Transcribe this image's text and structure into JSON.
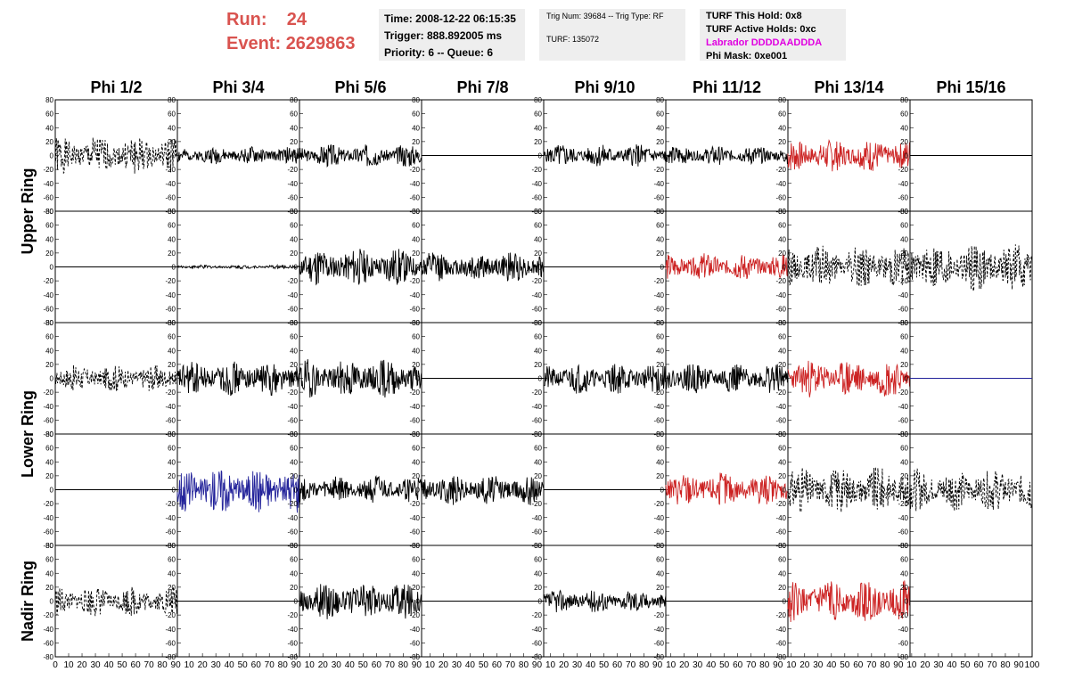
{
  "header": {
    "run_label": "Run:",
    "run_value": "24",
    "event_label": "Event:",
    "event_value": "2629863"
  },
  "info": {
    "time": "Time: 2008-12-22 06:15:35",
    "trigger": "Trigger: 888.892005 ms",
    "priority": "Priority: 6 -- Queue: 6",
    "trig_num": "Trig Num: 39684 -- Trig Type: RF",
    "turf": "TURF: 135072",
    "turf_hold": "TURF This Hold: 0x8",
    "turf_active": "TURF Active Holds: 0xc",
    "labrador": "Labrador DDDDAADDDA",
    "phi_mask": "Phi Mask: 0xe001"
  },
  "colors": {
    "run_text": "#d9534f",
    "labrador_text": "#e000e0",
    "trace_black": "#000000",
    "trace_red": "#cc2222",
    "trace_blue": "#22229a",
    "info_bg": "#eeeeee"
  },
  "chart_data": {
    "type": "line",
    "columns": [
      "Phi 1/2",
      "Phi 3/4",
      "Phi 5/6",
      "Phi 7/8",
      "Phi 9/10",
      "Phi 11/12",
      "Phi 13/14",
      "Phi 15/16"
    ],
    "ring_labels": [
      {
        "text": "Upper Ring"
      },
      {
        "text": "Lower Ring"
      },
      {
        "text": "Nadir Ring"
      }
    ],
    "xlim": [
      0,
      100
    ],
    "ylim": [
      -80,
      80
    ],
    "yticks": [
      "80",
      "60",
      "40",
      "20",
      "0",
      "-20",
      "-40",
      "-60",
      "-80"
    ],
    "xticks": [
      "0",
      "10",
      "20",
      "30",
      "40",
      "50",
      "60",
      "70",
      "80",
      "90",
      "10",
      "20",
      "30",
      "40",
      "50",
      "60",
      "70",
      "80",
      "90",
      "10",
      "20",
      "30",
      "40",
      "50",
      "60",
      "70",
      "80",
      "90",
      "10",
      "20",
      "30",
      "40",
      "50",
      "60",
      "70",
      "80",
      "90",
      "10",
      "20",
      "30",
      "40",
      "50",
      "60",
      "70",
      "80",
      "90",
      "10",
      "20",
      "30",
      "40",
      "50",
      "60",
      "70",
      "80",
      "90",
      "10",
      "20",
      "30",
      "40",
      "50",
      "60",
      "70",
      "80",
      "90",
      "10",
      "20",
      "30",
      "40",
      "50",
      "60",
      "70",
      "80",
      "90",
      "100"
    ],
    "panels": [
      [
        {
          "style": "dashed",
          "color": "black",
          "amp": 20,
          "seed": 1
        },
        {
          "style": "solid",
          "color": "black",
          "amp": 9,
          "seed": 2
        },
        {
          "style": "solid",
          "color": "black",
          "amp": 12,
          "seed": 3
        },
        {
          "style": "flat",
          "color": "black",
          "amp": 0,
          "seed": 4
        },
        {
          "style": "solid",
          "color": "black",
          "amp": 12,
          "seed": 5
        },
        {
          "style": "solid",
          "color": "black",
          "amp": 10,
          "seed": 6
        },
        {
          "style": "solid",
          "color": "red",
          "amp": 17,
          "seed": 7
        },
        {
          "style": "flat",
          "color": "black",
          "amp": 0,
          "seed": 8
        }
      ],
      [
        {
          "style": "flat",
          "color": "black",
          "amp": 0,
          "seed": 9
        },
        {
          "style": "solid",
          "color": "black",
          "amp": 2,
          "seed": 10
        },
        {
          "style": "solid",
          "color": "black",
          "amp": 20,
          "seed": 11
        },
        {
          "style": "solid",
          "color": "black",
          "amp": 16,
          "seed": 12
        },
        {
          "style": "flat",
          "color": "black",
          "amp": 0,
          "seed": 13
        },
        {
          "style": "solid",
          "color": "red",
          "amp": 14,
          "seed": 14
        },
        {
          "style": "dashed",
          "color": "black",
          "amp": 22,
          "seed": 15
        },
        {
          "style": "dashed",
          "color": "black",
          "amp": 26,
          "seed": 16
        }
      ],
      [
        {
          "style": "dashed",
          "color": "black",
          "amp": 14,
          "seed": 17
        },
        {
          "style": "solid",
          "color": "black",
          "amp": 18,
          "seed": 18
        },
        {
          "style": "solid",
          "color": "black",
          "amp": 20,
          "seed": 19
        },
        {
          "style": "flat",
          "color": "black",
          "amp": 0,
          "seed": 20
        },
        {
          "style": "solid",
          "color": "black",
          "amp": 16,
          "seed": 21
        },
        {
          "style": "solid",
          "color": "black",
          "amp": 16,
          "seed": 22
        },
        {
          "style": "solid",
          "color": "red",
          "amp": 20,
          "seed": 23
        },
        {
          "style": "flat",
          "color": "blue",
          "amp": 0,
          "seed": 24
        }
      ],
      [
        {
          "style": "flat",
          "color": "black",
          "amp": 0,
          "seed": 25
        },
        {
          "style": "solid",
          "color": "blue",
          "amp": 24,
          "seed": 26
        },
        {
          "style": "solid",
          "color": "black",
          "amp": 14,
          "seed": 27
        },
        {
          "style": "solid",
          "color": "black",
          "amp": 16,
          "seed": 28
        },
        {
          "style": "flat",
          "color": "black",
          "amp": 0,
          "seed": 29
        },
        {
          "style": "solid",
          "color": "red",
          "amp": 18,
          "seed": 30
        },
        {
          "style": "dashed",
          "color": "black",
          "amp": 24,
          "seed": 31
        },
        {
          "style": "dashed",
          "color": "black",
          "amp": 22,
          "seed": 32
        }
      ],
      [
        {
          "style": "dashed",
          "color": "black",
          "amp": 16,
          "seed": 33
        },
        {
          "style": "flat",
          "color": "black",
          "amp": 0,
          "seed": 34
        },
        {
          "style": "solid",
          "color": "black",
          "amp": 20,
          "seed": 35
        },
        {
          "style": "flat",
          "color": "black",
          "amp": 0,
          "seed": 36
        },
        {
          "style": "solid",
          "color": "black",
          "amp": 12,
          "seed": 37
        },
        {
          "style": "flat",
          "color": "black",
          "amp": 0,
          "seed": 38
        },
        {
          "style": "solid",
          "color": "red",
          "amp": 22,
          "seed": 39
        },
        {
          "style": "flat",
          "color": "black",
          "amp": 0,
          "seed": 40
        }
      ]
    ]
  }
}
